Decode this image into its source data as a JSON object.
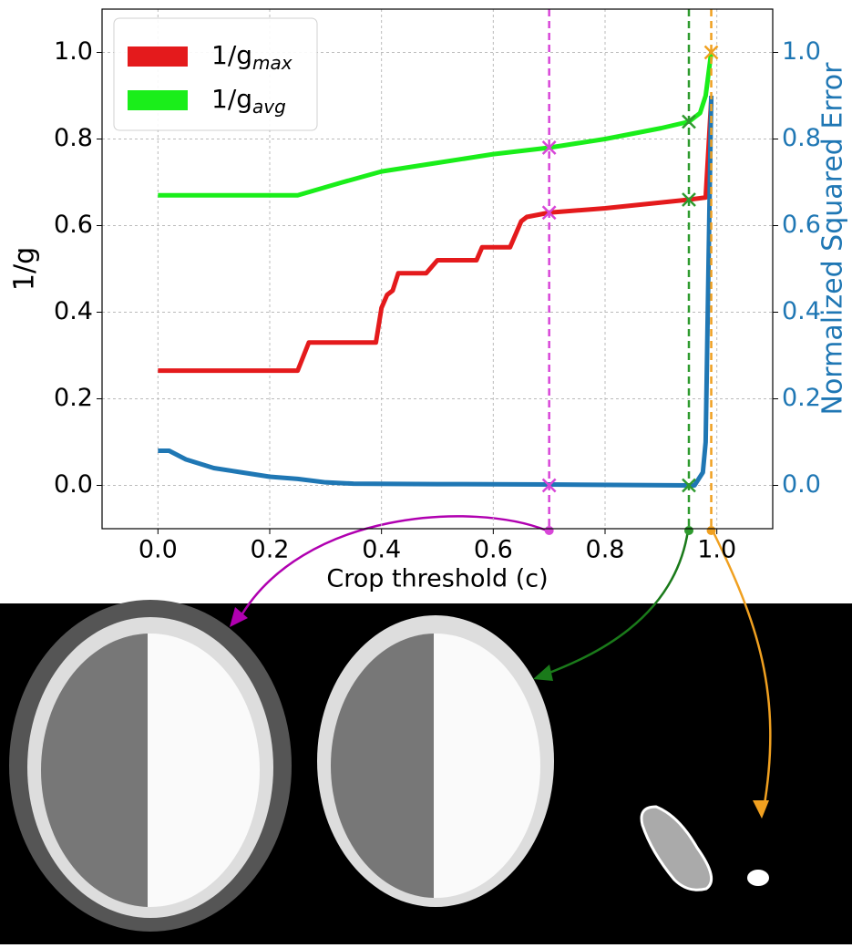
{
  "chart_data": {
    "type": "line",
    "xlabel": "Crop threshold (c)",
    "ylabel": "1/g",
    "y2label": "Normalized Squared Error",
    "y2color": "#1f77b4",
    "xlim": [
      -0.1,
      1.1
    ],
    "ylim": [
      -0.1,
      1.1
    ],
    "y2lim": [
      -0.1,
      1.1
    ],
    "xticks": [
      {
        "value": 0,
        "label": "0.0"
      },
      {
        "value": 0.2,
        "label": "0.2"
      },
      {
        "value": 0.4,
        "label": "0.4"
      },
      {
        "value": 0.6,
        "label": "0.6"
      },
      {
        "value": 0.8,
        "label": "0.8"
      },
      {
        "value": 1,
        "label": "1.0"
      }
    ],
    "yticks": [
      {
        "value": 0,
        "label": "0.0"
      },
      {
        "value": 0.2,
        "label": "0.2"
      },
      {
        "value": 0.4,
        "label": "0.4"
      },
      {
        "value": 0.6,
        "label": "0.6"
      },
      {
        "value": 0.8,
        "label": "0.8"
      },
      {
        "value": 1,
        "label": "1.0"
      }
    ],
    "y2ticks": [
      {
        "value": 0,
        "label": "0.0"
      },
      {
        "value": 0.2,
        "label": "0.2"
      },
      {
        "value": 0.4,
        "label": "0.4"
      },
      {
        "value": 0.6,
        "label": "0.6"
      },
      {
        "value": 0.8,
        "label": "0.8"
      },
      {
        "value": 1,
        "label": "1.0"
      }
    ],
    "grid": true,
    "legend": "upper left",
    "series": [
      {
        "name": "1/g",
        "subscript": "max",
        "color": "#e41a1c",
        "x": [
          0,
          0.25,
          0.27,
          0.39,
          0.4,
          0.41,
          0.42,
          0.43,
          0.48,
          0.5,
          0.51,
          0.57,
          0.58,
          0.63,
          0.65,
          0.66,
          0.7,
          0.8,
          0.95,
          0.98,
          0.99
        ],
        "values": [
          0.265,
          0.265,
          0.33,
          0.33,
          0.41,
          0.44,
          0.45,
          0.49,
          0.49,
          0.52,
          0.52,
          0.52,
          0.55,
          0.55,
          0.61,
          0.62,
          0.63,
          0.64,
          0.66,
          0.665,
          0.89
        ]
      },
      {
        "name": "1/g",
        "subscript": "avg",
        "color": "#1aee1a",
        "x": [
          0,
          0.25,
          0.33,
          0.4,
          0.5,
          0.6,
          0.7,
          0.8,
          0.9,
          0.95,
          0.97,
          0.98,
          0.99
        ],
        "values": [
          0.67,
          0.67,
          0.7,
          0.725,
          0.745,
          0.765,
          0.78,
          0.8,
          0.825,
          0.84,
          0.86,
          0.9,
          1.0
        ]
      },
      {
        "axis": "y2",
        "color": "#1f77b4",
        "x": [
          0,
          0.02,
          0.05,
          0.1,
          0.15,
          0.2,
          0.25,
          0.3,
          0.35,
          0.5,
          0.7,
          0.95,
          0.96,
          0.975,
          0.98,
          0.99
        ],
        "values": [
          0.08,
          0.08,
          0.06,
          0.04,
          0.03,
          0.02,
          0.015,
          0.007,
          0.004,
          0.003,
          0.002,
          0.0,
          0.0,
          0.03,
          0.1,
          0.9
        ]
      }
    ],
    "thresholds": [
      {
        "x": 0.7,
        "color": "#d846d8",
        "marks": [
          0.78,
          0.63,
          0.0
        ]
      },
      {
        "x": 0.95,
        "color": "#2e9a2e",
        "marks": [
          0.84,
          0.66,
          0.0
        ]
      },
      {
        "x": 0.99,
        "color": "#f0a020",
        "marks": [
          1.0
        ]
      }
    ]
  }
}
